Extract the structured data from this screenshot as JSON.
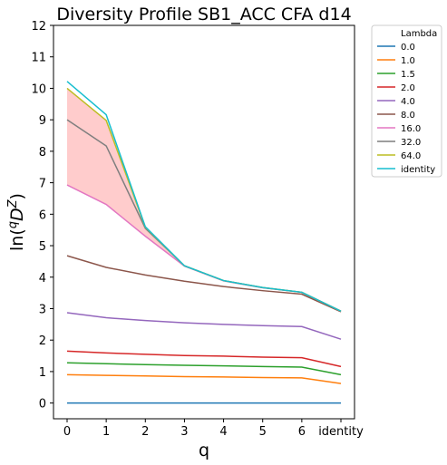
{
  "chart_data": {
    "type": "line",
    "title": "Diversity Profile SB1_ACC CFA d14",
    "xlabel": "q",
    "ylabel_parts": {
      "prefix": "ln(",
      "sup": "q",
      "main": "D",
      "sup2": "Z",
      "suffix": ")"
    },
    "categories": [
      "0",
      "1",
      "2",
      "3",
      "4",
      "5",
      "6",
      "identity"
    ],
    "ylim": [
      -0.5,
      12
    ],
    "yticks": [
      "0",
      "1",
      "2",
      "3",
      "4",
      "5",
      "6",
      "7",
      "8",
      "9",
      "10",
      "11",
      "12"
    ],
    "grid": false,
    "legend": {
      "title": "Lambda",
      "placement": "outside-right"
    },
    "band": {
      "lower_series": "16.0",
      "upper_series": "64.0",
      "color": "#ffcccc"
    },
    "series": [
      {
        "name": "0.0",
        "color": "#1f77b4",
        "values": [
          0,
          0,
          0,
          0,
          0,
          0,
          0,
          0
        ]
      },
      {
        "name": "1.0",
        "color": "#ff7f0e",
        "values": [
          0.9,
          0.88,
          0.86,
          0.84,
          0.83,
          0.81,
          0.8,
          0.62
        ]
      },
      {
        "name": "1.5",
        "color": "#2ca02c",
        "values": [
          1.28,
          1.25,
          1.22,
          1.2,
          1.18,
          1.16,
          1.14,
          0.9
        ]
      },
      {
        "name": "2.0",
        "color": "#d62728",
        "values": [
          1.65,
          1.59,
          1.55,
          1.51,
          1.49,
          1.46,
          1.44,
          1.16
        ]
      },
      {
        "name": "4.0",
        "color": "#9467bd",
        "values": [
          2.87,
          2.71,
          2.62,
          2.55,
          2.5,
          2.46,
          2.43,
          2.03
        ]
      },
      {
        "name": "8.0",
        "color": "#8c564b",
        "values": [
          4.68,
          4.31,
          4.07,
          3.87,
          3.7,
          3.57,
          3.46,
          2.9
        ]
      },
      {
        "name": "16.0",
        "color": "#e377c2",
        "values": [
          6.93,
          6.31,
          5.3,
          4.35,
          3.88,
          3.66,
          3.52,
          2.92
        ]
      },
      {
        "name": "32.0",
        "color": "#7f7f7f",
        "values": [
          9.0,
          8.17,
          5.55,
          4.36,
          3.89,
          3.67,
          3.52,
          2.92
        ]
      },
      {
        "name": "64.0",
        "color": "#bcbd22",
        "values": [
          10.0,
          8.98,
          5.59,
          4.36,
          3.89,
          3.67,
          3.52,
          2.92
        ]
      },
      {
        "name": "identity",
        "color": "#17becf",
        "values": [
          10.22,
          9.16,
          5.6,
          4.36,
          3.89,
          3.67,
          3.52,
          2.92
        ]
      }
    ]
  }
}
